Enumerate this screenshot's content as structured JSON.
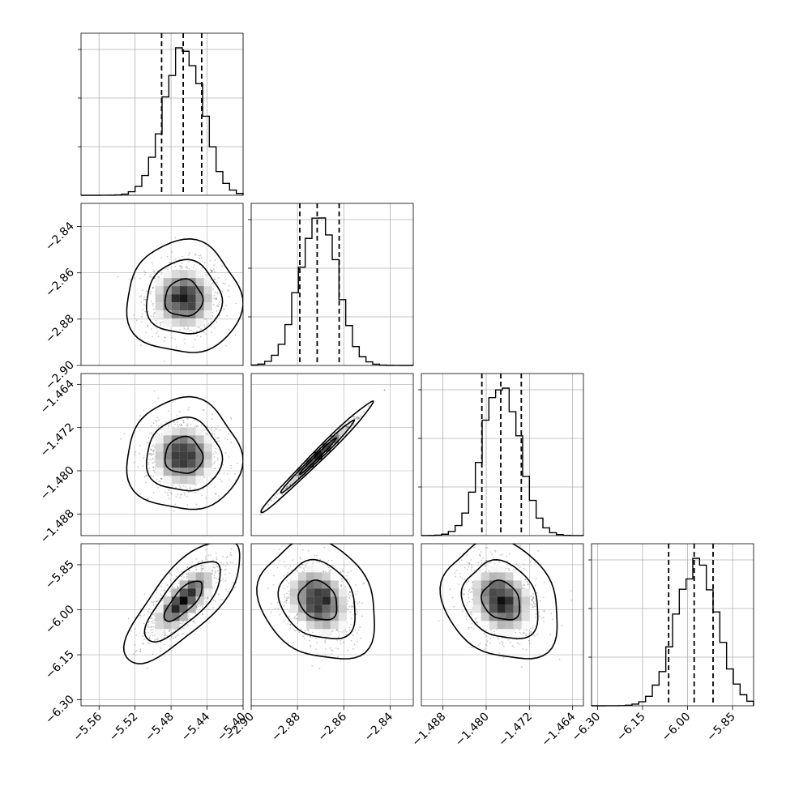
{
  "chart_data": {
    "type": "corner",
    "grid": true,
    "quantile_lines": "dashed",
    "colors": {
      "line": "#000000",
      "grid": "#b0b0b0",
      "density": "#000000"
    },
    "params": [
      {
        "range": [
          -5.58,
          -5.4
        ],
        "ticks": [
          "−5.56",
          "−5.52",
          "−5.48",
          "−5.44",
          "−5.40"
        ],
        "tick_values": [
          -5.56,
          -5.52,
          -5.48,
          -5.44,
          -5.4
        ],
        "quantiles": [
          -5.4905,
          -5.4665,
          -5.446
        ],
        "mean": -5.466,
        "sd": 0.021
      },
      {
        "range": [
          -2.9,
          -2.83
        ],
        "ticks": [
          "−2.90",
          "−2.88",
          "−2.86",
          "−2.84"
        ],
        "tick_values": [
          -2.9,
          -2.88,
          -2.86,
          -2.84
        ],
        "quantiles": [
          -2.879,
          -2.8715,
          -2.862
        ],
        "mean": -2.871,
        "sd": 0.008
      },
      {
        "range": [
          -1.492,
          -1.462
        ],
        "ticks": [
          "−1.488",
          "−1.480",
          "−1.472",
          "−1.464"
        ],
        "tick_values": [
          -1.488,
          -1.48,
          -1.472,
          -1.464
        ],
        "quantiles": [
          -1.4808,
          -1.4773,
          -1.4735
        ],
        "mean": -1.4772,
        "sd": 0.0034
      },
      {
        "range": [
          -6.32,
          -5.78
        ],
        "ticks": [
          "−6.30",
          "−6.15",
          "−6.00",
          "−5.85"
        ],
        "tick_values": [
          -6.3,
          -6.15,
          -6.0,
          -5.85
        ],
        "quantiles": [
          -6.063,
          -5.978,
          -5.915
        ],
        "mean": -5.97,
        "sd": 0.068
      }
    ],
    "correlations": [
      {
        "pair": [
          1,
          0
        ],
        "rho": 0.0
      },
      {
        "pair": [
          2,
          0
        ],
        "rho": 0.0
      },
      {
        "pair": [
          2,
          1
        ],
        "rho": 0.99
      },
      {
        "pair": [
          3,
          0
        ],
        "rho": 0.75
      },
      {
        "pair": [
          3,
          1
        ],
        "rho": -0.2
      },
      {
        "pair": [
          3,
          2
        ],
        "rho": -0.2
      }
    ],
    "histogram_bins": 24,
    "contour_levels": [
      0.39,
      0.86,
      0.99
    ]
  }
}
